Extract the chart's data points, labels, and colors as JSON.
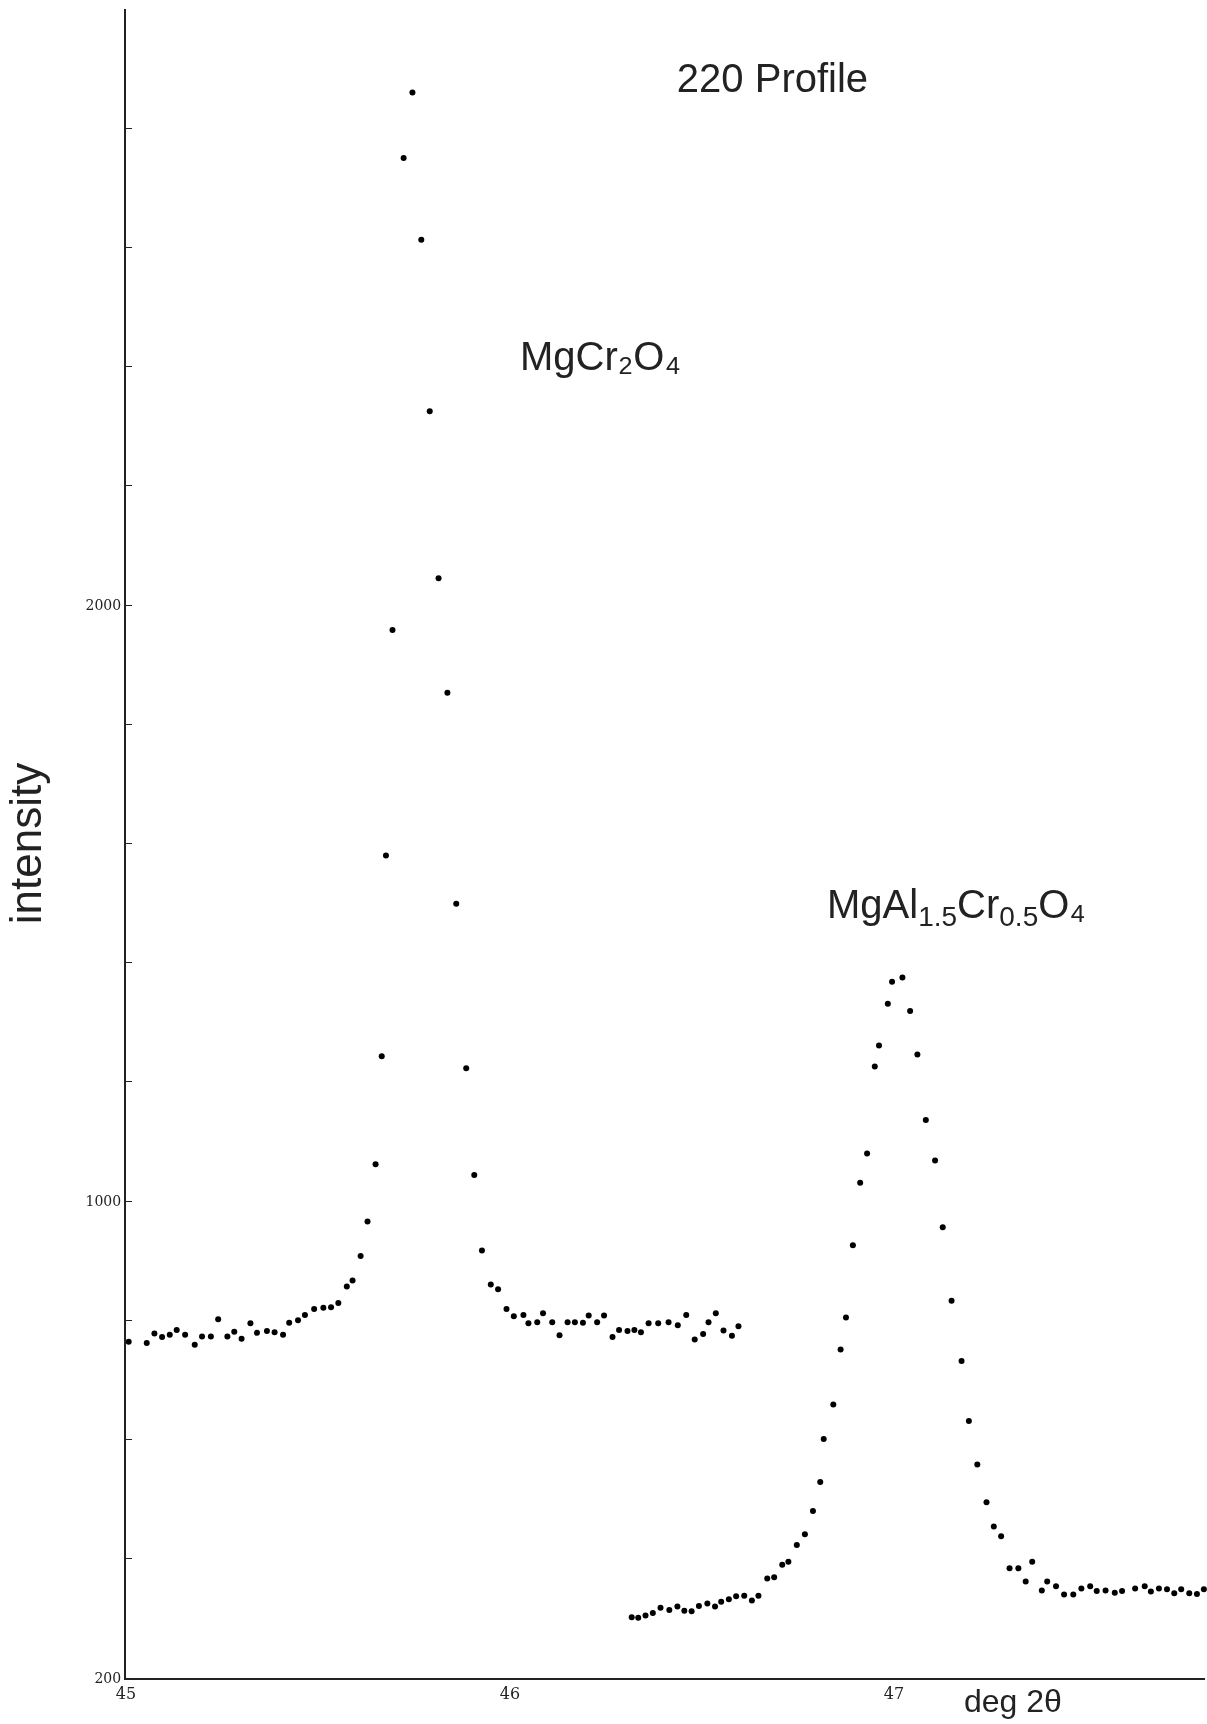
{
  "chart_data": {
    "type": "scatter",
    "title": "220 Profile",
    "xlabel": "deg 2θ",
    "ylabel": "intensity",
    "annotations": [
      "MgCr₂O₄",
      "MgAl$_{1.5}$Cr$_{0.5}$O₄"
    ],
    "xlim": [
      45,
      47.81
    ],
    "ylim": [
      200,
      3000
    ],
    "xticks": [
      45,
      46,
      47
    ],
    "yticks": [
      200,
      {
        "value": 400,
        "label": null
      },
      {
        "value": 600,
        "label": null
      },
      {
        "value": 800,
        "label": null
      },
      1000,
      {
        "value": 1200,
        "label": null
      },
      {
        "value": 1400,
        "label": null
      },
      {
        "value": 1600,
        "label": null
      },
      {
        "value": 1800,
        "label": null
      },
      2000,
      {
        "value": 2200,
        "label": null
      },
      {
        "value": 2400,
        "label": null
      },
      {
        "value": 2600,
        "label": null
      },
      {
        "value": 2800,
        "label": null
      }
    ],
    "grid": false,
    "marker": "circle",
    "series": [
      {
        "color": "#000000",
        "x": [
          45.007,
          45.054,
          45.074,
          45.094,
          45.114,
          45.132,
          45.154,
          45.179,
          45.198,
          45.221,
          45.24,
          45.264,
          45.282,
          45.301,
          45.324,
          45.341,
          45.367,
          45.387,
          45.409,
          45.425,
          45.448,
          45.466,
          45.49,
          45.514,
          45.534,
          45.553,
          45.575,
          45.59,
          45.611,
          45.629,
          45.65,
          45.666,
          45.677,
          45.694,
          45.723,
          45.746,
          45.769,
          45.791,
          45.814,
          45.837,
          45.86,
          45.886,
          45.907,
          45.927,
          45.95,
          45.969,
          45.991,
          46.01,
          46.035,
          46.048,
          46.071,
          46.086,
          46.11,
          46.129,
          46.15,
          46.169,
          46.19,
          46.205,
          46.227,
          46.245,
          46.267,
          46.284,
          46.306,
          46.324,
          46.341,
          46.361,
          46.386,
          46.413,
          46.437,
          46.459,
          46.481,
          46.503,
          46.517,
          46.536,
          46.556,
          46.578,
          46.595
        ],
        "values": [
          764,
          762,
          778,
          772,
          776,
          784,
          776,
          759,
          773,
          773,
          802,
          773,
          781,
          769,
          795,
          779,
          782,
          780,
          776,
          796,
          800,
          809,
          819,
          821,
          822,
          829,
          857,
          867,
          908,
          966,
          1062,
          1243,
          1580,
          1958,
          2750,
          2860,
          2613,
          2325,
          2045,
          1853,
          1499,
          1223,
          1044,
          917,
          860,
          852,
          819,
          807,
          809,
          795,
          797,
          812,
          797,
          775,
          797,
          797,
          796,
          808,
          797,
          808,
          772,
          784,
          782,
          784,
          780,
          795,
          795,
          797,
          792,
          809,
          768,
          777,
          797,
          812,
          783,
          774,
          790
        ]
      },
      {
        "color": "#000000",
        "x": [
          46.317,
          46.334,
          46.353,
          46.372,
          46.392,
          46.415,
          46.436,
          46.454,
          46.473,
          46.492,
          46.514,
          46.534,
          46.55,
          46.57,
          46.589,
          46.61,
          46.63,
          46.647,
          46.67,
          46.688,
          46.709,
          46.725,
          46.747,
          46.768,
          46.789,
          46.808,
          46.817,
          46.842,
          46.861,
          46.875,
          46.893,
          46.912,
          46.93,
          46.95,
          46.961,
          46.984,
          46.995,
          47.022,
          47.042,
          47.061,
          47.083,
          47.107,
          47.127,
          47.15,
          47.176,
          47.195,
          47.217,
          47.241,
          47.26,
          47.279,
          47.301,
          47.324,
          47.343,
          47.36,
          47.385,
          47.399,
          47.422,
          47.443,
          47.467,
          47.488,
          47.511,
          47.528,
          47.551,
          47.575,
          47.594,
          47.628,
          47.653,
          47.669,
          47.69,
          47.711,
          47.73,
          47.748,
          47.769,
          47.789,
          47.807
        ],
        "values": [
          302,
          301,
          305,
          309,
          318,
          314,
          320,
          313,
          312,
          321,
          325,
          320,
          328,
          332,
          337,
          338,
          330,
          338,
          367,
          369,
          390,
          395,
          423,
          441,
          480,
          529,
          601,
          659,
          751,
          805,
          926,
          1031,
          1080,
          1226,
          1261,
          1331,
          1368,
          1375,
          1319,
          1246,
          1136,
          1068,
          956,
          833,
          732,
          631,
          558,
          495,
          454,
          438,
          384,
          384,
          362,
          395,
          347,
          362,
          354,
          340,
          340,
          350,
          354,
          346,
          347,
          343,
          346,
          350,
          354,
          345,
          350,
          349,
          342,
          349,
          342,
          341,
          349
        ]
      }
    ]
  }
}
